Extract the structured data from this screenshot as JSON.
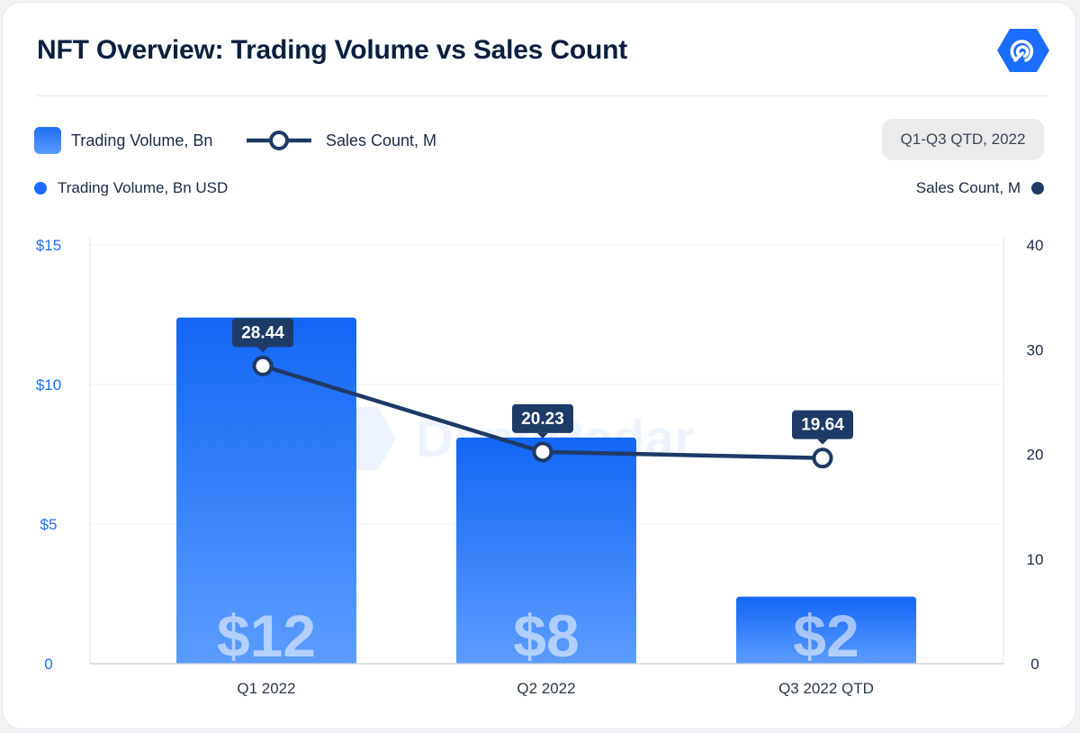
{
  "header": {
    "title": "NFT Overview: Trading Volume vs Sales Count"
  },
  "legend": {
    "bar_label": "Trading Volume, Bn",
    "line_label": "Sales Count, M",
    "period": "Q1-Q3 QTD, 2022",
    "left_axis_label": "Trading Volume, Bn USD",
    "right_axis_label": "Sales Count, M"
  },
  "logo_icon": "radar-hexagon-icon",
  "watermark": "DappRadar",
  "colors": {
    "bar_top": "#1366f5",
    "bar_bottom": "#5b9cff",
    "line": "#1e3a66",
    "left_axis": "#1f6ef5",
    "right_axis": "#1b2a44"
  },
  "chart_data": {
    "type": "bar",
    "title": "NFT Overview: Trading Volume vs Sales Count",
    "categories": [
      "Q1 2022",
      "Q2 2022",
      "Q3 2022 QTD"
    ],
    "series": [
      {
        "name": "Trading Volume, Bn",
        "axis": "left",
        "type": "bar",
        "values": [
          12.4,
          8.1,
          2.4
        ],
        "labels": [
          "$12",
          "$8",
          "$2"
        ]
      },
      {
        "name": "Sales Count, M",
        "axis": "right",
        "type": "line",
        "values": [
          28.44,
          20.23,
          19.64
        ],
        "labels": [
          "28.44",
          "20.23",
          "19.64"
        ]
      }
    ],
    "ylim_left": [
      0,
      15
    ],
    "ylim_right": [
      0,
      40
    ],
    "left_ticks": [
      {
        "value": 0,
        "label": "0"
      },
      {
        "value": 5,
        "label": "$5"
      },
      {
        "value": 10,
        "label": "$10"
      },
      {
        "value": 15,
        "label": "$15"
      }
    ],
    "right_ticks": [
      {
        "value": 0,
        "label": "0"
      },
      {
        "value": 10,
        "label": "10"
      },
      {
        "value": 20,
        "label": "20"
      },
      {
        "value": 30,
        "label": "30"
      },
      {
        "value": 40,
        "label": "40"
      }
    ],
    "grid": true
  }
}
